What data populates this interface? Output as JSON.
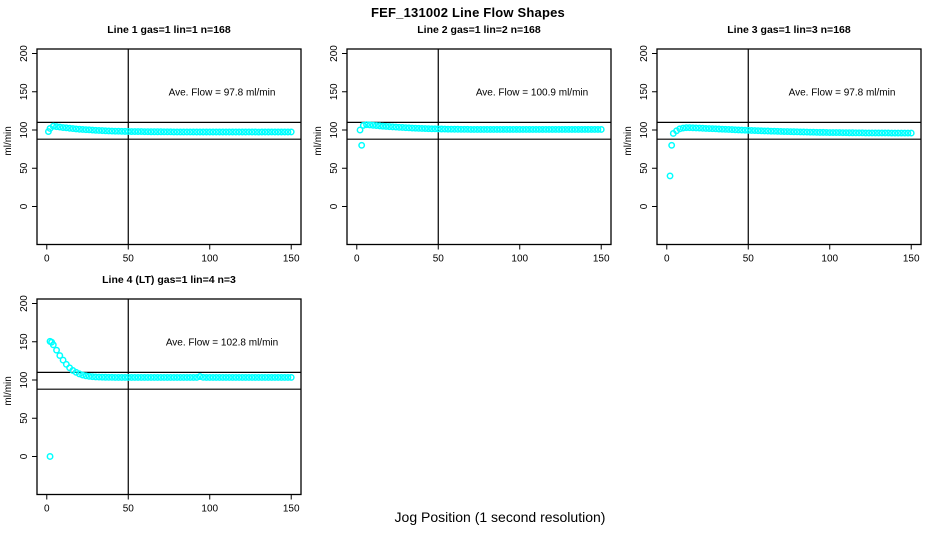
{
  "figure": {
    "title": "FEF_131002  Line Flow Shapes",
    "xlabel": "Jog Position (1 second resolution)",
    "background": "#ffffff"
  },
  "chart_data": {
    "type": "scatter",
    "marker": "open-circle",
    "marker_color": "#00ffff",
    "axis_color": "#000000",
    "ylabel": "ml/min",
    "x_ticks": [
      0,
      50,
      100,
      150
    ],
    "y_ticks": [
      0,
      50,
      100,
      150,
      200
    ],
    "xlim": [
      -6,
      156
    ],
    "ylim": [
      -50,
      206
    ],
    "ref_lines_y": [
      110,
      88
    ],
    "vline_x": 50,
    "grid": "off",
    "legend": "none",
    "panels": [
      {
        "title": "Line 1 gas=1 lin=1 n=168",
        "ave_flow": 97.8,
        "annotation": "Ave. Flow =  97.8  ml/min",
        "outliers": [
          [
            1,
            98
          ]
        ],
        "points": [
          [
            2,
            102
          ],
          [
            4,
            105
          ],
          [
            6,
            104.4
          ],
          [
            8,
            103.8
          ],
          [
            10,
            103.2
          ],
          [
            12,
            102.8
          ],
          [
            14,
            102.3
          ],
          [
            16,
            101.9
          ],
          [
            18,
            101.4
          ],
          [
            20,
            101
          ],
          [
            22,
            100.7
          ],
          [
            24,
            100.4
          ],
          [
            26,
            100.2
          ],
          [
            28,
            99.9
          ],
          [
            30,
            99.6
          ],
          [
            32,
            99.4
          ],
          [
            34,
            99.2
          ],
          [
            36,
            99
          ],
          [
            38,
            98.8
          ],
          [
            40,
            98.6
          ],
          [
            42,
            98.5
          ],
          [
            44,
            98.4
          ],
          [
            46,
            98.3
          ],
          [
            48,
            98.2
          ],
          [
            50,
            98.1
          ],
          [
            52,
            98
          ],
          [
            54,
            98
          ],
          [
            56,
            97.9
          ],
          [
            58,
            97.9
          ],
          [
            60,
            97.8
          ],
          [
            62,
            97.8
          ],
          [
            64,
            97.7
          ],
          [
            66,
            97.7
          ],
          [
            68,
            97.7
          ],
          [
            70,
            97.7
          ],
          [
            72,
            97.6
          ],
          [
            74,
            97.6
          ],
          [
            76,
            97.6
          ],
          [
            78,
            97.5
          ],
          [
            80,
            97.5
          ],
          [
            82,
            97.5
          ],
          [
            84,
            97.5
          ],
          [
            86,
            97.5
          ],
          [
            88,
            97.5
          ],
          [
            90,
            97.5
          ],
          [
            92,
            97.4
          ],
          [
            94,
            97.4
          ],
          [
            96,
            97.4
          ],
          [
            98,
            97.4
          ],
          [
            100,
            97.4
          ],
          [
            102,
            97.4
          ],
          [
            104,
            97.4
          ],
          [
            106,
            97.4
          ],
          [
            108,
            97.4
          ],
          [
            110,
            97.4
          ],
          [
            112,
            97.4
          ],
          [
            114,
            97.4
          ],
          [
            116,
            97.4
          ],
          [
            118,
            97.4
          ],
          [
            120,
            97.4
          ],
          [
            122,
            97.4
          ],
          [
            124,
            97.5
          ],
          [
            126,
            97.4
          ],
          [
            128,
            97.4
          ],
          [
            130,
            97.3
          ],
          [
            132,
            97.4
          ],
          [
            134,
            97.4
          ],
          [
            136,
            97.4
          ],
          [
            138,
            97.5
          ],
          [
            140,
            97.4
          ],
          [
            142,
            97.4
          ],
          [
            144,
            97.4
          ],
          [
            146,
            97.4
          ],
          [
            148,
            97.4
          ],
          [
            150,
            97.5
          ]
        ]
      },
      {
        "title": "Line 2 gas=1 lin=2 n=168",
        "ave_flow": 100.9,
        "annotation": "Ave. Flow =  100.9  ml/min",
        "outliers": [
          [
            3,
            80
          ]
        ],
        "points": [
          [
            2,
            100
          ],
          [
            4,
            106
          ],
          [
            6,
            107
          ],
          [
            8,
            106.6
          ],
          [
            10,
            106.2
          ],
          [
            12,
            105.8
          ],
          [
            14,
            105.4
          ],
          [
            16,
            105
          ],
          [
            18,
            104.7
          ],
          [
            20,
            104.4
          ],
          [
            22,
            104.1
          ],
          [
            24,
            103.8
          ],
          [
            26,
            103.5
          ],
          [
            28,
            103.3
          ],
          [
            30,
            103
          ],
          [
            32,
            102.8
          ],
          [
            34,
            102.6
          ],
          [
            36,
            102.4
          ],
          [
            38,
            102.2
          ],
          [
            40,
            102
          ],
          [
            42,
            101.9
          ],
          [
            44,
            101.7
          ],
          [
            46,
            101.6
          ],
          [
            48,
            101.5
          ],
          [
            50,
            101.4
          ],
          [
            52,
            101.3
          ],
          [
            54,
            101.2
          ],
          [
            56,
            101.1
          ],
          [
            58,
            101.1
          ],
          [
            60,
            101
          ],
          [
            62,
            101
          ],
          [
            64,
            100.9
          ],
          [
            66,
            100.9
          ],
          [
            68,
            100.9
          ],
          [
            70,
            100.8
          ],
          [
            72,
            100.8
          ],
          [
            74,
            100.8
          ],
          [
            76,
            100.8
          ],
          [
            78,
            100.8
          ],
          [
            80,
            100.8
          ],
          [
            82,
            100.8
          ],
          [
            84,
            100.7
          ],
          [
            86,
            100.7
          ],
          [
            88,
            100.7
          ],
          [
            90,
            100.7
          ],
          [
            92,
            100.7
          ],
          [
            94,
            100.7
          ],
          [
            96,
            100.7
          ],
          [
            98,
            100.7
          ],
          [
            100,
            100.7
          ],
          [
            102,
            100.7
          ],
          [
            104,
            100.7
          ],
          [
            106,
            100.7
          ],
          [
            108,
            100.7
          ],
          [
            110,
            100.7
          ],
          [
            112,
            100.7
          ],
          [
            114,
            100.7
          ],
          [
            116,
            100.7
          ],
          [
            118,
            100.7
          ],
          [
            120,
            100.7
          ],
          [
            122,
            100.7
          ],
          [
            124,
            100.7
          ],
          [
            126,
            100.7
          ],
          [
            128,
            100.7
          ],
          [
            130,
            100.7
          ],
          [
            132,
            100.7
          ],
          [
            134,
            100.7
          ],
          [
            136,
            100.7
          ],
          [
            138,
            100.7
          ],
          [
            140,
            100.7
          ],
          [
            142,
            100.7
          ],
          [
            144,
            100.7
          ],
          [
            146,
            100.7
          ],
          [
            148,
            100.7
          ],
          [
            150,
            100.7
          ]
        ]
      },
      {
        "title": "Line 3 gas=1 lin=3 n=168",
        "ave_flow": 97.8,
        "annotation": "Ave. Flow =  97.8  ml/min",
        "outliers": [
          [
            2,
            40
          ],
          [
            3,
            80
          ]
        ],
        "points": [
          [
            4,
            95.5
          ],
          [
            6,
            99
          ],
          [
            8,
            101.5
          ],
          [
            10,
            102.5
          ],
          [
            12,
            103
          ],
          [
            14,
            103
          ],
          [
            16,
            102.9
          ],
          [
            18,
            102.7
          ],
          [
            20,
            102.5
          ],
          [
            22,
            102.3
          ],
          [
            24,
            102.1
          ],
          [
            26,
            101.9
          ],
          [
            28,
            101.7
          ],
          [
            30,
            101.5
          ],
          [
            32,
            101.3
          ],
          [
            34,
            101.1
          ],
          [
            36,
            100.9
          ],
          [
            38,
            100.7
          ],
          [
            40,
            100.5
          ],
          [
            42,
            100.3
          ],
          [
            44,
            100.1
          ],
          [
            46,
            99.9
          ],
          [
            48,
            99.8
          ],
          [
            50,
            99.6
          ],
          [
            52,
            99.4
          ],
          [
            54,
            99.3
          ],
          [
            56,
            99.1
          ],
          [
            58,
            99
          ],
          [
            60,
            98.8
          ],
          [
            62,
            98.7
          ],
          [
            64,
            98.5
          ],
          [
            66,
            98.4
          ],
          [
            68,
            98.3
          ],
          [
            70,
            98.1
          ],
          [
            72,
            98
          ],
          [
            74,
            97.9
          ],
          [
            76,
            97.8
          ],
          [
            78,
            97.7
          ],
          [
            80,
            97.6
          ],
          [
            82,
            97.5
          ],
          [
            84,
            97.4
          ],
          [
            86,
            97.3
          ],
          [
            88,
            97.2
          ],
          [
            90,
            97.1
          ],
          [
            92,
            97
          ],
          [
            94,
            96.9
          ],
          [
            96,
            96.9
          ],
          [
            98,
            96.8
          ],
          [
            100,
            96.7
          ],
          [
            102,
            96.7
          ],
          [
            104,
            96.6
          ],
          [
            106,
            96.6
          ],
          [
            108,
            96.5
          ],
          [
            110,
            96.5
          ],
          [
            112,
            96.4
          ],
          [
            114,
            96.4
          ],
          [
            116,
            96.3
          ],
          [
            118,
            96.3
          ],
          [
            120,
            96.3
          ],
          [
            122,
            96.2
          ],
          [
            124,
            96.2
          ],
          [
            126,
            96.2
          ],
          [
            128,
            96.2
          ],
          [
            130,
            96.1
          ],
          [
            132,
            96.1
          ],
          [
            134,
            96.1
          ],
          [
            136,
            96.1
          ],
          [
            138,
            96
          ],
          [
            140,
            96
          ],
          [
            142,
            96
          ],
          [
            144,
            96
          ],
          [
            146,
            96
          ],
          [
            148,
            96
          ],
          [
            150,
            96
          ]
        ]
      },
      {
        "title": "Line 4 (LT) gas=1 lin=4 n=3",
        "ave_flow": 102.8,
        "annotation": "Ave. Flow =  102.8  ml/min",
        "outliers": [
          [
            2,
            0
          ]
        ],
        "points": [
          [
            2,
            150.5
          ],
          [
            3,
            149.5
          ],
          [
            4,
            146
          ],
          [
            6,
            139
          ],
          [
            8,
            132
          ],
          [
            10,
            126
          ],
          [
            12,
            120.5
          ],
          [
            14,
            116
          ],
          [
            16,
            112.5
          ],
          [
            18,
            110
          ],
          [
            20,
            108
          ],
          [
            22,
            106.5
          ],
          [
            24,
            105.5
          ],
          [
            26,
            104.8
          ],
          [
            28,
            104.3
          ],
          [
            30,
            104
          ],
          [
            32,
            103.8
          ],
          [
            34,
            103.7
          ],
          [
            36,
            103.6
          ],
          [
            38,
            103.5
          ],
          [
            40,
            103.5
          ],
          [
            42,
            103.4
          ],
          [
            44,
            103.4
          ],
          [
            46,
            103.4
          ],
          [
            48,
            103.4
          ],
          [
            50,
            103.4
          ],
          [
            52,
            103.4
          ],
          [
            54,
            103.4
          ],
          [
            56,
            103.4
          ],
          [
            58,
            103.4
          ],
          [
            60,
            103.4
          ],
          [
            62,
            103.4
          ],
          [
            64,
            103.4
          ],
          [
            66,
            103.4
          ],
          [
            68,
            103.4
          ],
          [
            70,
            103.4
          ],
          [
            72,
            103.4
          ],
          [
            74,
            103.4
          ],
          [
            76,
            103.4
          ],
          [
            78,
            103.4
          ],
          [
            80,
            103.4
          ],
          [
            82,
            103.4
          ],
          [
            84,
            103.4
          ],
          [
            86,
            103.4
          ],
          [
            88,
            103.4
          ],
          [
            90,
            103.4
          ],
          [
            92,
            103.4
          ],
          [
            94,
            104.5
          ],
          [
            96,
            103.5
          ],
          [
            98,
            103.4
          ],
          [
            100,
            103.4
          ],
          [
            102,
            103.4
          ],
          [
            104,
            103.4
          ],
          [
            106,
            103.4
          ],
          [
            108,
            103.4
          ],
          [
            110,
            103.4
          ],
          [
            112,
            103.4
          ],
          [
            114,
            103.4
          ],
          [
            116,
            103.4
          ],
          [
            118,
            103.4
          ],
          [
            120,
            103.4
          ],
          [
            122,
            103.4
          ],
          [
            124,
            103.4
          ],
          [
            126,
            103.4
          ],
          [
            128,
            103.4
          ],
          [
            130,
            103.4
          ],
          [
            132,
            103.4
          ],
          [
            134,
            103.4
          ],
          [
            136,
            103.4
          ],
          [
            138,
            103.4
          ],
          [
            140,
            103.4
          ],
          [
            142,
            103.4
          ],
          [
            144,
            103.4
          ],
          [
            146,
            103.4
          ],
          [
            148,
            103.4
          ],
          [
            150,
            103.4
          ]
        ]
      }
    ]
  }
}
